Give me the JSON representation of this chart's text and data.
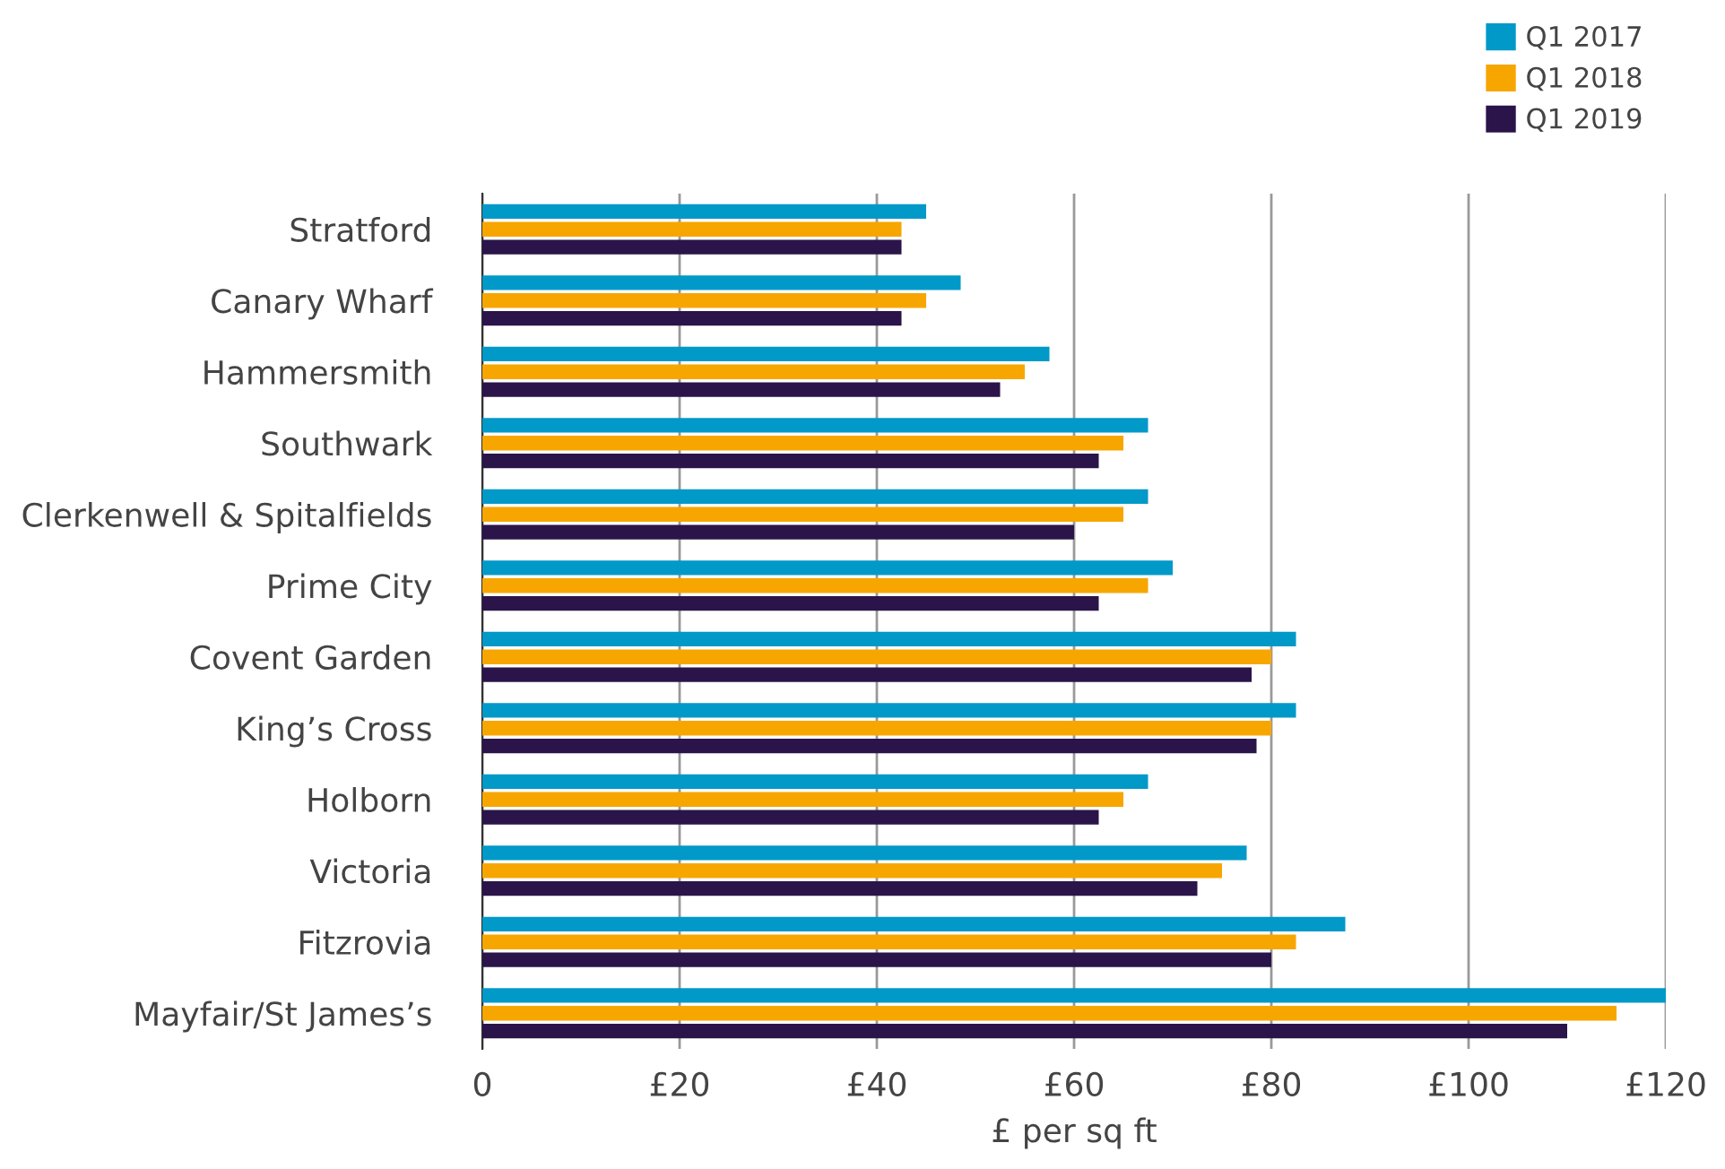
{
  "chart_data": {
    "type": "bar",
    "orientation": "horizontal",
    "xlabel": "£ per sq ft",
    "categories": [
      "Stratford",
      "Canary Wharf",
      "Hammersmith",
      "Southwark",
      "Clerkenwell & Spitalfields",
      "Prime City",
      "Covent Garden",
      "King’s Cross",
      "Holborn",
      "Victoria",
      "Fitzrovia",
      "Mayfair/St James’s"
    ],
    "series": [
      {
        "name": "Q1 2017",
        "color": "#0099c8",
        "values": [
          45,
          48.5,
          57.5,
          67.5,
          67.5,
          70,
          82.5,
          82.5,
          67.5,
          77.5,
          87.5,
          120
        ]
      },
      {
        "name": "Q1 2018",
        "color": "#f7a600",
        "values": [
          42.5,
          45,
          55,
          65,
          65,
          67.5,
          80,
          80,
          65,
          75,
          82.5,
          115
        ]
      },
      {
        "name": "Q1 2019",
        "color": "#2a1449",
        "values": [
          42.5,
          42.5,
          52.5,
          62.5,
          60,
          62.5,
          78,
          78.5,
          62.5,
          72.5,
          80,
          110
        ]
      }
    ],
    "xlim": [
      0,
      120
    ],
    "xticks": [
      0,
      {
        "value": 20,
        "label": "£20"
      },
      {
        "value": 40,
        "label": "£40"
      },
      {
        "value": 60,
        "label": "£60"
      },
      {
        "value": 80,
        "label": "£80"
      },
      {
        "value": 100,
        "label": "£100"
      },
      {
        "value": 120,
        "label": "£120"
      }
    ],
    "grid": "x",
    "legend": "top right"
  }
}
